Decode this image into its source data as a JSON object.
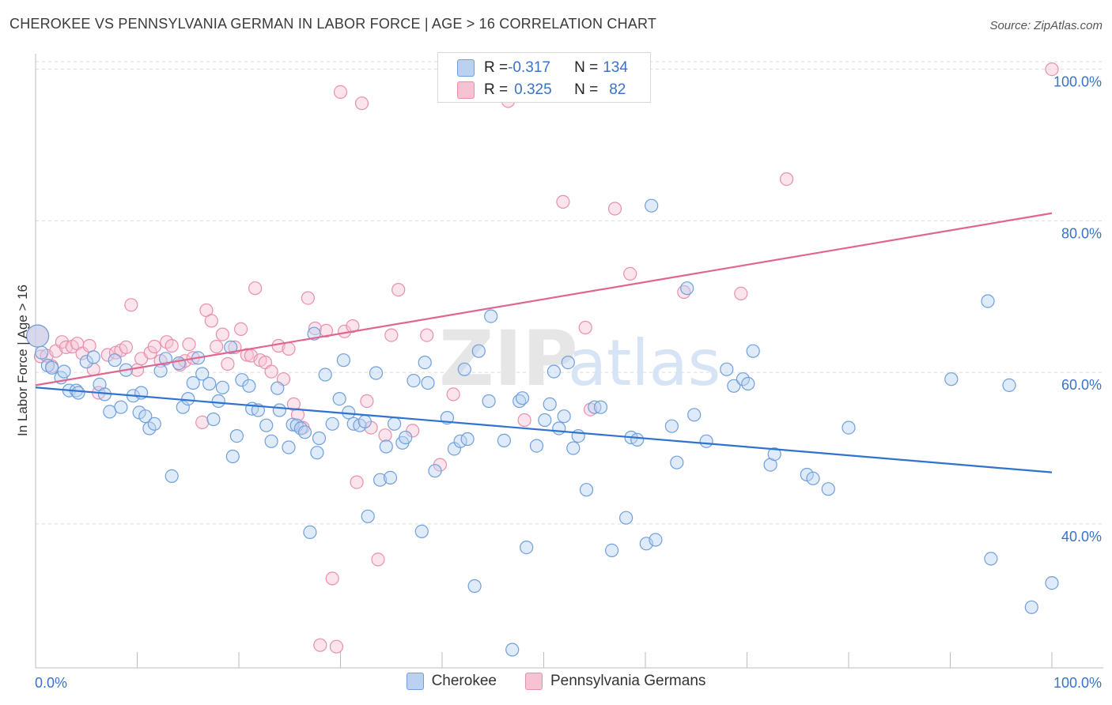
{
  "header": {
    "title": "CHEROKEE VS PENNSYLVANIA GERMAN IN LABOR FORCE | AGE > 16 CORRELATION CHART",
    "source": "Source: ZipAtlas.com"
  },
  "watermark": {
    "text_zip": "ZIP",
    "text_atlas": "atlas"
  },
  "legend": {
    "rows": [
      {
        "r_label": "R = ",
        "r_value": "-0.317",
        "n_label": "N = ",
        "n_value": "134"
      },
      {
        "r_label": "R = ",
        "r_value": "0.325",
        "n_label": "N = ",
        "n_value": "82"
      }
    ]
  },
  "bottom_legend": {
    "items": [
      "Cherokee",
      "Pennsylvania Germans"
    ]
  },
  "colors": {
    "cherokee_fill": "#b9d2f2",
    "cherokee_stroke": "#6f9fdc",
    "cherokee_line": "#2f73cf",
    "pa_fill": "#f7c3d3",
    "pa_stroke": "#e98fae",
    "pa_line": "#e0668f",
    "tick_label": "#3a72c9",
    "grid": "#dcdcdc"
  },
  "chart_data": {
    "type": "scatter",
    "title": "CHEROKEE VS PENNSYLVANIA GERMAN IN LABOR FORCE | AGE > 16 CORRELATION CHART",
    "xlabel": "",
    "ylabel": "In Labor Force | Age > 16",
    "xlim": [
      0,
      100
    ],
    "ylim": [
      21,
      101
    ],
    "x_tick_labels": [
      "0.0%",
      "100.0%"
    ],
    "y_ticks": [
      40,
      60,
      80,
      100
    ],
    "y_tick_labels": [
      "40.0%",
      "60.0%",
      "80.0%",
      "100.0%"
    ],
    "grid": "horizontal dashed",
    "legend_position": "top-center",
    "series": [
      {
        "name": "Cherokee",
        "r": -0.317,
        "n": 134,
        "trend": {
          "x": [
            0,
            100
          ],
          "y": [
            58.0,
            46.8
          ]
        },
        "points": [
          [
            0.2,
            64.8
          ],
          [
            0.6,
            62.6
          ],
          [
            1.2,
            60.9
          ],
          [
            1.6,
            60.6
          ],
          [
            2.5,
            59.3
          ],
          [
            2.8,
            60.1
          ],
          [
            3.3,
            57.6
          ],
          [
            4.0,
            57.6
          ],
          [
            4.2,
            57.3
          ],
          [
            5.0,
            61.4
          ],
          [
            5.7,
            62.0
          ],
          [
            6.3,
            58.4
          ],
          [
            6.8,
            57.1
          ],
          [
            7.3,
            54.8
          ],
          [
            7.8,
            61.6
          ],
          [
            8.4,
            55.4
          ],
          [
            8.9,
            60.3
          ],
          [
            9.6,
            56.9
          ],
          [
            10.2,
            54.7
          ],
          [
            10.4,
            57.3
          ],
          [
            10.8,
            54.2
          ],
          [
            11.2,
            52.6
          ],
          [
            11.7,
            53.2
          ],
          [
            12.3,
            60.2
          ],
          [
            12.8,
            61.8
          ],
          [
            13.4,
            46.3
          ],
          [
            14.1,
            61.2
          ],
          [
            14.5,
            55.4
          ],
          [
            15.0,
            56.5
          ],
          [
            15.5,
            58.6
          ],
          [
            16.0,
            61.9
          ],
          [
            16.4,
            59.8
          ],
          [
            17.1,
            58.5
          ],
          [
            17.5,
            53.8
          ],
          [
            18.0,
            56.2
          ],
          [
            18.4,
            58.0
          ],
          [
            19.2,
            63.3
          ],
          [
            19.4,
            48.9
          ],
          [
            19.8,
            51.6
          ],
          [
            20.3,
            59.0
          ],
          [
            21.0,
            58.2
          ],
          [
            21.3,
            55.2
          ],
          [
            21.9,
            55.0
          ],
          [
            22.7,
            53.0
          ],
          [
            23.2,
            50.9
          ],
          [
            23.8,
            57.9
          ],
          [
            24.0,
            55.0
          ],
          [
            24.9,
            50.1
          ],
          [
            25.3,
            53.1
          ],
          [
            25.7,
            53.0
          ],
          [
            26.1,
            52.6
          ],
          [
            26.5,
            52.1
          ],
          [
            27.0,
            38.9
          ],
          [
            27.4,
            65.1
          ],
          [
            27.7,
            49.4
          ],
          [
            27.9,
            51.3
          ],
          [
            28.5,
            59.7
          ],
          [
            29.2,
            53.2
          ],
          [
            29.9,
            56.5
          ],
          [
            30.3,
            61.6
          ],
          [
            30.8,
            54.7
          ],
          [
            31.3,
            53.2
          ],
          [
            31.9,
            53.0
          ],
          [
            32.4,
            53.5
          ],
          [
            32.7,
            41.0
          ],
          [
            33.5,
            59.9
          ],
          [
            33.9,
            45.8
          ],
          [
            34.5,
            50.2
          ],
          [
            34.9,
            46.1
          ],
          [
            35.3,
            53.2
          ],
          [
            36.1,
            50.7
          ],
          [
            36.4,
            51.4
          ],
          [
            37.2,
            58.9
          ],
          [
            38.0,
            39.0
          ],
          [
            38.3,
            61.3
          ],
          [
            38.6,
            58.6
          ],
          [
            39.3,
            47.0
          ],
          [
            40.5,
            54.0
          ],
          [
            41.2,
            49.9
          ],
          [
            41.8,
            50.9
          ],
          [
            42.2,
            60.4
          ],
          [
            42.5,
            51.2
          ],
          [
            43.2,
            31.8
          ],
          [
            43.6,
            62.8
          ],
          [
            44.6,
            56.2
          ],
          [
            44.8,
            67.4
          ],
          [
            46.1,
            51.0
          ],
          [
            46.9,
            23.4
          ],
          [
            47.6,
            56.2
          ],
          [
            47.9,
            56.6
          ],
          [
            48.3,
            36.9
          ],
          [
            49.3,
            50.3
          ],
          [
            50.1,
            53.7
          ],
          [
            50.6,
            55.8
          ],
          [
            51.0,
            60.1
          ],
          [
            51.5,
            52.6
          ],
          [
            52.0,
            54.2
          ],
          [
            52.4,
            61.3
          ],
          [
            52.9,
            50.0
          ],
          [
            53.4,
            51.6
          ],
          [
            54.2,
            44.5
          ],
          [
            55.0,
            55.4
          ],
          [
            55.6,
            55.4
          ],
          [
            56.7,
            36.5
          ],
          [
            58.1,
            40.8
          ],
          [
            58.6,
            51.4
          ],
          [
            59.2,
            51.1
          ],
          [
            60.1,
            37.4
          ],
          [
            60.6,
            82.0
          ],
          [
            61.0,
            37.9
          ],
          [
            62.6,
            52.9
          ],
          [
            63.1,
            48.1
          ],
          [
            64.1,
            71.1
          ],
          [
            64.8,
            54.4
          ],
          [
            66.0,
            50.9
          ],
          [
            68.0,
            60.4
          ],
          [
            68.7,
            58.2
          ],
          [
            69.6,
            59.1
          ],
          [
            70.1,
            58.5
          ],
          [
            70.6,
            62.8
          ],
          [
            72.3,
            47.8
          ],
          [
            72.7,
            49.2
          ],
          [
            75.9,
            46.5
          ],
          [
            76.5,
            46.0
          ],
          [
            78.0,
            44.6
          ],
          [
            80.0,
            52.7
          ],
          [
            90.1,
            59.1
          ],
          [
            93.7,
            69.4
          ],
          [
            94.0,
            35.4
          ],
          [
            95.8,
            58.3
          ],
          [
            98.0,
            29.0
          ],
          [
            100.0,
            32.2
          ]
        ]
      },
      {
        "name": "Pennsylvania Germans",
        "r": 0.325,
        "n": 82,
        "trend": {
          "x": [
            0,
            100
          ],
          "y": [
            58.3,
            81.0
          ]
        },
        "points": [
          [
            0.2,
            64.8
          ],
          [
            0.5,
            62.1
          ],
          [
            1.1,
            62.2
          ],
          [
            1.6,
            60.8
          ],
          [
            2.0,
            62.8
          ],
          [
            2.6,
            64.0
          ],
          [
            3.0,
            63.3
          ],
          [
            3.6,
            63.4
          ],
          [
            4.1,
            63.8
          ],
          [
            4.6,
            62.5
          ],
          [
            5.3,
            63.5
          ],
          [
            5.7,
            60.4
          ],
          [
            6.2,
            57.3
          ],
          [
            7.1,
            62.3
          ],
          [
            7.9,
            62.6
          ],
          [
            8.4,
            62.9
          ],
          [
            8.9,
            63.3
          ],
          [
            9.4,
            68.9
          ],
          [
            10.0,
            60.3
          ],
          [
            10.4,
            61.8
          ],
          [
            11.3,
            62.6
          ],
          [
            11.7,
            63.4
          ],
          [
            12.3,
            61.5
          ],
          [
            12.9,
            64.0
          ],
          [
            13.4,
            63.5
          ],
          [
            14.2,
            61.0
          ],
          [
            14.7,
            61.5
          ],
          [
            15.1,
            63.7
          ],
          [
            15.5,
            61.9
          ],
          [
            16.4,
            53.4
          ],
          [
            16.8,
            68.2
          ],
          [
            17.3,
            66.8
          ],
          [
            17.8,
            63.4
          ],
          [
            18.4,
            65.0
          ],
          [
            18.9,
            61.1
          ],
          [
            19.6,
            63.3
          ],
          [
            20.2,
            65.7
          ],
          [
            20.8,
            62.3
          ],
          [
            21.2,
            62.2
          ],
          [
            21.6,
            71.1
          ],
          [
            22.1,
            61.6
          ],
          [
            22.6,
            61.3
          ],
          [
            23.2,
            60.1
          ],
          [
            23.9,
            63.5
          ],
          [
            24.4,
            59.1
          ],
          [
            24.9,
            63.1
          ],
          [
            25.4,
            55.8
          ],
          [
            25.8,
            54.4
          ],
          [
            26.3,
            52.7
          ],
          [
            26.8,
            69.8
          ],
          [
            27.5,
            65.8
          ],
          [
            28.0,
            24.0
          ],
          [
            28.6,
            65.5
          ],
          [
            29.2,
            32.8
          ],
          [
            29.6,
            23.8
          ],
          [
            30.0,
            97.0
          ],
          [
            30.4,
            65.4
          ],
          [
            31.2,
            66.1
          ],
          [
            31.6,
            45.5
          ],
          [
            32.1,
            95.5
          ],
          [
            32.6,
            56.2
          ],
          [
            33.0,
            52.7
          ],
          [
            33.7,
            35.3
          ],
          [
            34.4,
            51.7
          ],
          [
            35.0,
            64.9
          ],
          [
            35.7,
            70.9
          ],
          [
            37.1,
            52.3
          ],
          [
            38.5,
            64.9
          ],
          [
            39.8,
            47.8
          ],
          [
            41.1,
            57.1
          ],
          [
            42.4,
            100.0
          ],
          [
            46.5,
            95.8
          ],
          [
            48.1,
            53.7
          ],
          [
            51.9,
            82.5
          ],
          [
            54.1,
            65.9
          ],
          [
            54.6,
            55.1
          ],
          [
            57.0,
            81.6
          ],
          [
            58.5,
            73.0
          ],
          [
            63.8,
            70.6
          ],
          [
            69.4,
            70.4
          ],
          [
            73.9,
            85.5
          ],
          [
            100.0,
            100.0
          ]
        ]
      }
    ]
  }
}
